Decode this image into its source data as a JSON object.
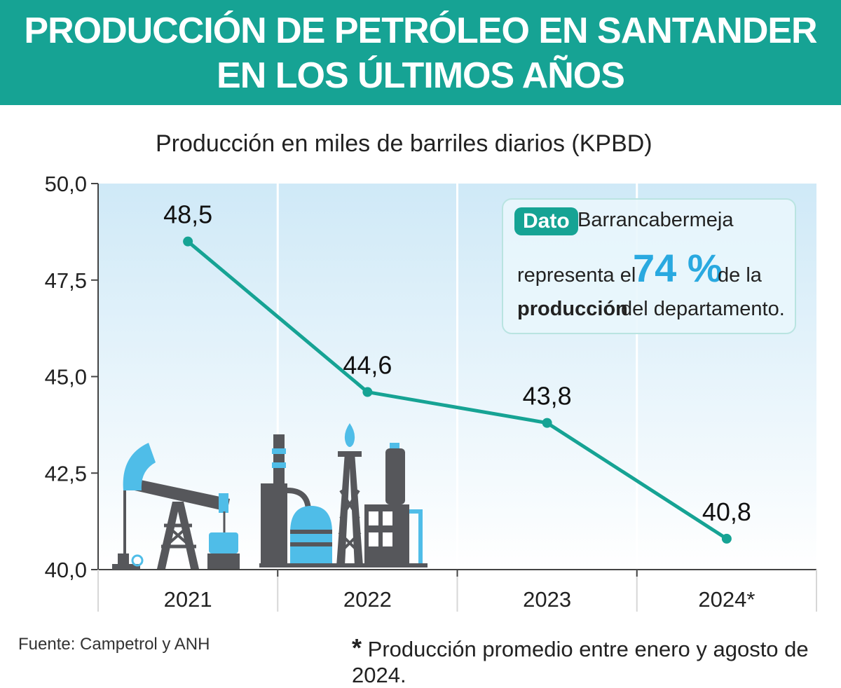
{
  "header": {
    "title_line1": "PRODUCCIÓN DE PETRÓLEO EN SANTANDER",
    "title_line2": "EN LOS ÚLTIMOS AÑOS"
  },
  "chart_data": {
    "type": "line",
    "subtitle": "Producción en miles de barriles diarios (KPBD)",
    "categories": [
      "2021",
      "2022",
      "2023",
      "2024*"
    ],
    "series": [
      {
        "values": [
          48.5,
          44.6,
          43.8,
          40.8
        ],
        "data_labels": [
          "48,5",
          "44,6",
          "43,8",
          "40,8"
        ]
      }
    ],
    "yticks": [
      "40,0",
      "42,5",
      "45,0",
      "47,5",
      "50,0"
    ],
    "ylim": [
      40,
      50
    ],
    "grid": true,
    "line_color": "#16a394"
  },
  "callout": {
    "badge": "Dato",
    "line1": "Barrancabermeja",
    "line2_pre": "representa el",
    "percent": "74 %",
    "line2_post": "de la",
    "line3_bold": "producción",
    "line3_rest": "del departamento."
  },
  "footer": {
    "source": "Fuente: Campetrol y ANH",
    "footnote_star": "*",
    "footnote": "Producción promedio entre enero y agosto de 2024."
  },
  "colors": {
    "accent": "#16a394",
    "highlight": "#29a9e0",
    "icon_gray": "#56575b",
    "icon_blue": "#4fbde8"
  }
}
